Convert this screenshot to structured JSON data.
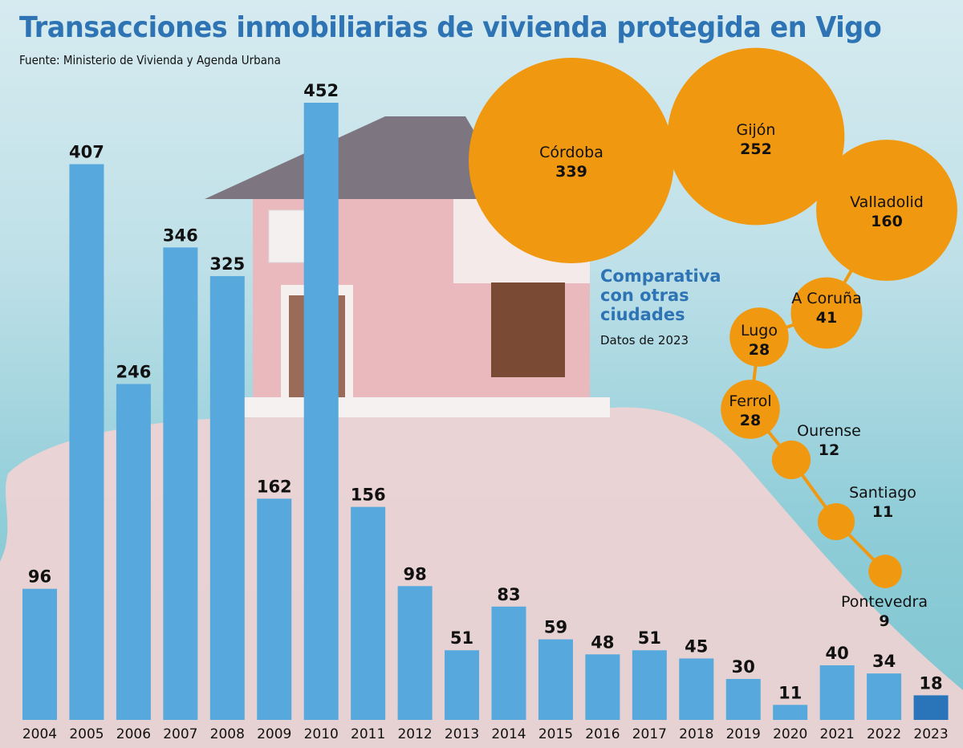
{
  "title": "Transacciones inmobiliarias de vivienda protegida en Vigo",
  "source": "Fuente: Ministerio de Vivienda y Agenda Urbana",
  "comparison": {
    "title_lines": [
      "Comparativa",
      "con otras",
      "ciudades"
    ],
    "subtitle": "Datos de 2023"
  },
  "colors": {
    "bar": "#56a8dd",
    "bar_highlight": "#2a74b9",
    "bubble": "#f0980f",
    "title": "#2e74b5"
  },
  "chart_data": [
    {
      "type": "bar",
      "categories": [
        "2004",
        "2005",
        "2006",
        "2007",
        "2008",
        "2009",
        "2010",
        "2011",
        "2012",
        "2013",
        "2014",
        "2015",
        "2016",
        "2017",
        "2018",
        "2019",
        "2020",
        "2021",
        "2022",
        "2023"
      ],
      "values": [
        96,
        407,
        246,
        346,
        325,
        162,
        452,
        156,
        98,
        51,
        83,
        59,
        48,
        51,
        45,
        30,
        11,
        40,
        34,
        18
      ],
      "highlight": "2023",
      "title": "Transacciones inmobiliarias de vivienda protegida en Vigo",
      "xlabel": "",
      "ylabel": "",
      "ylim": [
        0,
        460
      ],
      "grid": false
    },
    {
      "type": "bubble",
      "title": "Comparativa con otras ciudades",
      "subtitle": "Datos de 2023",
      "categories": [
        "Córdoba",
        "Gijón",
        "Valladolid",
        "A Coruña",
        "Lugo",
        "Ferrol",
        "Ourense",
        "Santiago",
        "Pontevedra"
      ],
      "values": [
        339,
        252,
        160,
        41,
        28,
        28,
        12,
        11,
        9
      ]
    }
  ]
}
